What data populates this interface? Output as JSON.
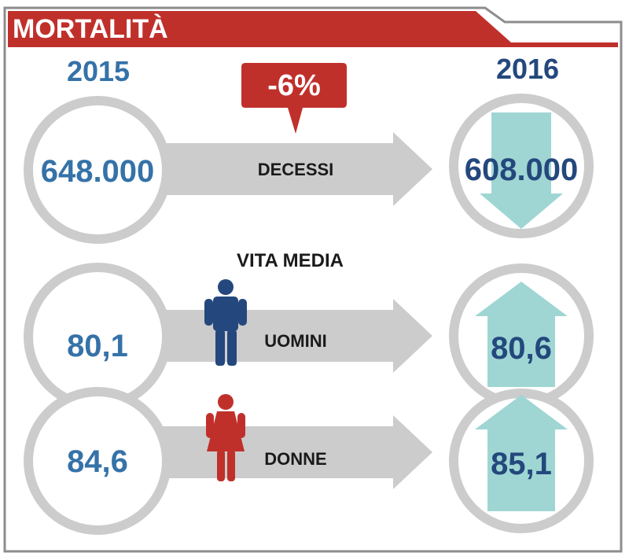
{
  "header": {
    "title": "MORTALITÀ"
  },
  "years": {
    "left": "2015",
    "right": "2016"
  },
  "change_badge": {
    "label": "-6%"
  },
  "deaths": {
    "label": "DECESSI",
    "value_2015": "648.000",
    "value_2016": "608.000",
    "trend": "down"
  },
  "life_expectancy": {
    "label": "VITA MEDIA",
    "men": {
      "label": "UOMINI",
      "value_2015": "80,1",
      "value_2016": "80,6",
      "trend": "up"
    },
    "women": {
      "label": "DONNE",
      "value_2015": "84,6",
      "value_2016": "85,1",
      "trend": "up"
    }
  },
  "colors": {
    "red": "#c0302b",
    "blue_light": "#3572a8",
    "blue_dark": "#24487d",
    "teal": "#9fd6d3",
    "gray": "#cccccc",
    "border": "#8c8c8c"
  }
}
